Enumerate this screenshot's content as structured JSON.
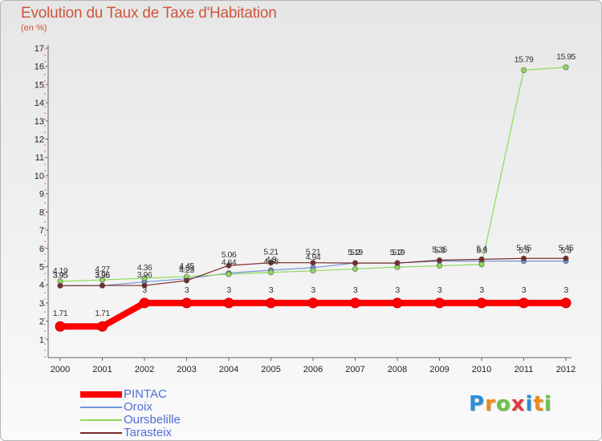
{
  "page": {
    "title": "Evolution du Taux de Taxe d'Habitation",
    "subtitle": "(en %)"
  },
  "chart_data": {
    "type": "line",
    "title": "Evolution du Taux de Taxe d'Habitation",
    "ylabel": "(en %)",
    "xlabel": "",
    "x": [
      "2000",
      "2001",
      "2002",
      "2003",
      "2004",
      "2005",
      "2006",
      "2007",
      "2008",
      "2009",
      "2010",
      "2011",
      "2012"
    ],
    "ylim": [
      0,
      17
    ],
    "yticks": [
      1,
      2,
      3,
      4,
      5,
      6,
      7,
      8,
      9,
      10,
      11,
      12,
      13,
      14,
      15,
      16,
      17
    ],
    "grid": false,
    "legend_position": "bottom-left",
    "series": [
      {
        "name": "PINTAC",
        "color": "#ff0000",
        "width": 8,
        "values": [
          1.71,
          1.71,
          3,
          3,
          3,
          3,
          3,
          3,
          3,
          3,
          3,
          3,
          3
        ],
        "labels": [
          "1.71",
          "1.71",
          "3",
          "3",
          "3",
          "3",
          "3",
          "3",
          "3",
          "3",
          "3",
          "3",
          "3"
        ]
      },
      {
        "name": "Oroix",
        "color": "#6f96d8",
        "width": 1.2,
        "values": [
          3.95,
          3.95,
          4.16,
          4.33,
          4.64,
          4.8,
          4.94,
          5.2,
          5.2,
          5.3,
          5.3,
          5.3,
          5.3
        ],
        "labels": [
          "3.95",
          "3.95",
          "",
          "4.33",
          "4.64",
          "4.8",
          "4.94",
          "5.2",
          "5.2",
          "5.3",
          "5.3",
          "5.3",
          "5.3"
        ]
      },
      {
        "name": "Oursbelille",
        "color": "#8edb5b",
        "width": 1.2,
        "values": [
          4.19,
          4.27,
          4.36,
          4.45,
          4.58,
          4.68,
          4.77,
          4.87,
          4.97,
          5.04,
          5.12,
          15.79,
          15.95
        ],
        "labels": [
          "4.19",
          "4.27",
          "4.36",
          "4.45",
          "",
          "4.68",
          "",
          "",
          "",
          "",
          "",
          "15.79",
          "15.95"
        ]
      },
      {
        "name": "Tarasteix",
        "color": "#7a2a2a",
        "width": 1.2,
        "values": [
          3.95,
          3.96,
          3.96,
          4.23,
          5.06,
          5.21,
          5.21,
          5.19,
          5.19,
          5.35,
          5.4,
          5.45,
          5.45
        ],
        "labels": [
          "3.95",
          "3.96",
          "3.96",
          "4.23",
          "5.06",
          "5.21",
          "5.21",
          "5.19",
          "5.19",
          "5.35",
          "5.4",
          "5.45",
          "5.45"
        ]
      }
    ]
  },
  "logo": {
    "letters": [
      {
        "char": "P",
        "color": "#2a8fd6"
      },
      {
        "char": "r",
        "color": "#f08a1c"
      },
      {
        "char": "o",
        "color": "#6cc24a"
      },
      {
        "char": "x",
        "color": "#e23b3b"
      },
      {
        "char": "i",
        "color": "#2a8fd6"
      },
      {
        "char": "t",
        "color": "#f08a1c"
      },
      {
        "char": "i",
        "color": "#6cc24a"
      }
    ]
  }
}
